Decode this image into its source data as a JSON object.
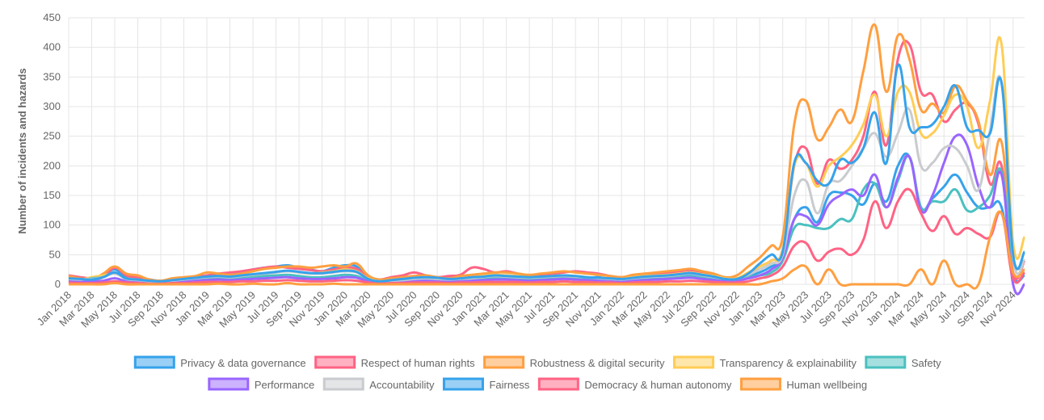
{
  "chart_data": {
    "type": "line",
    "y_label": "Number of incidents and hazards",
    "categories": [
      "Jan 2018",
      null,
      "Mar 2018",
      null,
      "May 2018",
      null,
      "Jul 2018",
      null,
      "Sep 2018",
      null,
      "Nov 2018",
      null,
      "Jan 2019",
      null,
      "Mar 2019",
      null,
      "May 2019",
      null,
      "Jul 2019",
      null,
      "Sep 2019",
      null,
      "Nov 2019",
      null,
      "Jan 2020",
      null,
      "Mar 2020",
      null,
      "May 2020",
      null,
      "Jul 2020",
      null,
      "Sep 2020",
      null,
      "Nov 2020",
      null,
      "Jan 2021",
      null,
      "Mar 2021",
      null,
      "May 2021",
      null,
      "Jul 2021",
      null,
      "Sep 2021",
      null,
      "Nov 2021",
      null,
      "Jan 2022",
      null,
      "Mar 2022",
      null,
      "May 2022",
      null,
      "Jul 2022",
      null,
      "Sep 2022",
      null,
      "Nov 2022",
      null,
      "Jan 2023",
      null,
      "Mar 2023",
      null,
      "May 2023",
      null,
      "Jul 2023",
      null,
      "Sep 2023",
      null,
      "Nov 2023",
      null,
      "Jan 2024",
      null,
      "Mar 2024",
      null,
      "May 2024",
      null,
      "Jul 2024",
      null,
      "Sep 2024",
      null,
      "Nov 2024",
      null
    ],
    "ylim": [
      0,
      450
    ],
    "yticks": [
      0,
      50,
      100,
      150,
      200,
      250,
      300,
      350,
      400,
      450
    ],
    "grid": true,
    "legend": "bottom",
    "series": [
      {
        "name": "Privacy & data governance",
        "color": "#36a2eb",
        "values": [
          12,
          10,
          8,
          15,
          25,
          12,
          10,
          8,
          6,
          8,
          10,
          12,
          15,
          16,
          18,
          20,
          25,
          28,
          30,
          32,
          28,
          25,
          22,
          28,
          32,
          30,
          10,
          5,
          8,
          10,
          12,
          14,
          12,
          10,
          8,
          10,
          12,
          14,
          15,
          12,
          10,
          12,
          14,
          15,
          12,
          10,
          12,
          8,
          10,
          12,
          15,
          18,
          20,
          16,
          14,
          12,
          10,
          8,
          10,
          15,
          20,
          30,
          45,
          110,
          130,
          105,
          150,
          155,
          150,
          135,
          170,
          140,
          200,
          215,
          130,
          145,
          165,
          185,
          155,
          130,
          130,
          130,
          15,
          15
        ]
      },
      {
        "name": "Respect of human rights",
        "color": "#ff6384",
        "values": [
          15,
          12,
          10,
          12,
          28,
          15,
          12,
          8,
          5,
          8,
          10,
          12,
          15,
          18,
          20,
          22,
          25,
          28,
          30,
          28,
          26,
          24,
          22,
          25,
          28,
          26,
          12,
          8,
          12,
          15,
          20,
          15,
          12,
          14,
          16,
          28,
          26,
          20,
          22,
          18,
          15,
          16,
          18,
          20,
          22,
          20,
          18,
          14,
          12,
          14,
          16,
          18,
          20,
          22,
          24,
          20,
          15,
          10,
          10,
          18,
          30,
          40,
          60,
          200,
          230,
          170,
          210,
          195,
          210,
          250,
          325,
          235,
          380,
          405,
          325,
          320,
          275,
          295,
          305,
          270,
          170,
          200,
          20,
          40
        ]
      },
      {
        "name": "Robustness & digital security",
        "color": "#ff9f40",
        "values": [
          14,
          10,
          8,
          18,
          30,
          18,
          15,
          8,
          6,
          10,
          12,
          14,
          20,
          18,
          16,
          18,
          22,
          26,
          28,
          30,
          30,
          28,
          30,
          32,
          30,
          35,
          15,
          8,
          10,
          12,
          14,
          15,
          12,
          10,
          14,
          16,
          18,
          20,
          20,
          18,
          16,
          18,
          20,
          22,
          20,
          18,
          16,
          14,
          12,
          16,
          18,
          20,
          22,
          24,
          26,
          22,
          18,
          12,
          15,
          30,
          45,
          65,
          80,
          270,
          310,
          245,
          265,
          295,
          275,
          360,
          438,
          325,
          420,
          380,
          295,
          305,
          290,
          335,
          310,
          275,
          185,
          240,
          45,
          40
        ]
      },
      {
        "name": "Transparency & explainability",
        "color": "#ffcd56",
        "values": [
          10,
          8,
          12,
          15,
          18,
          10,
          8,
          5,
          4,
          6,
          8,
          10,
          12,
          14,
          12,
          14,
          16,
          18,
          20,
          22,
          20,
          18,
          20,
          22,
          25,
          22,
          10,
          5,
          6,
          8,
          10,
          12,
          10,
          8,
          10,
          12,
          14,
          16,
          15,
          14,
          12,
          13,
          14,
          15,
          14,
          12,
          10,
          10,
          9,
          12,
          14,
          15,
          16,
          18,
          20,
          17,
          14,
          10,
          10,
          20,
          30,
          40,
          60,
          200,
          205,
          165,
          200,
          215,
          235,
          270,
          320,
          250,
          325,
          325,
          255,
          255,
          285,
          320,
          300,
          230,
          310,
          405,
          70,
          80
        ]
      },
      {
        "name": "Safety",
        "color": "#4bc0c0",
        "values": [
          8,
          6,
          10,
          12,
          20,
          8,
          6,
          4,
          3,
          5,
          6,
          8,
          10,
          10,
          9,
          10,
          12,
          14,
          15,
          16,
          14,
          12,
          12,
          14,
          16,
          14,
          6,
          3,
          4,
          5,
          6,
          8,
          7,
          6,
          7,
          8,
          9,
          10,
          10,
          9,
          8,
          9,
          10,
          11,
          10,
          9,
          8,
          7,
          6,
          8,
          9,
          10,
          11,
          12,
          13,
          11,
          9,
          7,
          8,
          12,
          15,
          20,
          40,
          95,
          100,
          95,
          95,
          110,
          110,
          160,
          170,
          130,
          175,
          215,
          130,
          140,
          140,
          160,
          125,
          130,
          150,
          190,
          40,
          40
        ]
      },
      {
        "name": "Performance",
        "color": "#9966ff",
        "values": [
          5,
          4,
          5,
          6,
          10,
          5,
          4,
          3,
          2,
          4,
          5,
          6,
          7,
          8,
          7,
          8,
          9,
          10,
          11,
          12,
          10,
          9,
          9,
          10,
          12,
          11,
          5,
          2,
          3,
          4,
          5,
          6,
          5,
          4,
          5,
          6,
          7,
          8,
          8,
          7,
          6,
          7,
          8,
          9,
          8,
          7,
          6,
          5,
          4,
          6,
          7,
          8,
          9,
          10,
          11,
          9,
          7,
          5,
          6,
          10,
          15,
          25,
          45,
          110,
          115,
          100,
          135,
          150,
          160,
          150,
          185,
          130,
          180,
          215,
          125,
          150,
          205,
          250,
          235,
          165,
          130,
          185,
          0,
          0
        ]
      },
      {
        "name": "Accountability",
        "color": "#c9cbcf",
        "values": [
          9,
          8,
          9,
          12,
          18,
          9,
          7,
          5,
          4,
          6,
          8,
          10,
          12,
          13,
          12,
          14,
          16,
          18,
          20,
          22,
          20,
          18,
          18,
          20,
          22,
          20,
          9,
          5,
          6,
          7,
          9,
          10,
          9,
          8,
          9,
          10,
          12,
          14,
          13,
          12,
          11,
          12,
          13,
          14,
          13,
          12,
          10,
          9,
          8,
          10,
          12,
          13,
          14,
          16,
          18,
          15,
          12,
          9,
          9,
          16,
          25,
          35,
          50,
          150,
          175,
          120,
          170,
          175,
          200,
          230,
          255,
          215,
          255,
          295,
          200,
          205,
          230,
          230,
          200,
          160,
          260,
          340,
          45,
          40
        ]
      },
      {
        "name": "Fairness",
        "color": "#36a2eb",
        "values": [
          10,
          9,
          8,
          12,
          20,
          10,
          8,
          6,
          5,
          7,
          9,
          11,
          13,
          14,
          13,
          15,
          17,
          19,
          21,
          23,
          21,
          19,
          19,
          21,
          23,
          21,
          9,
          5,
          7,
          9,
          11,
          12,
          11,
          9,
          10,
          12,
          13,
          15,
          14,
          13,
          12,
          13,
          14,
          15,
          14,
          12,
          11,
          10,
          9,
          11,
          13,
          14,
          15,
          17,
          19,
          16,
          13,
          9,
          9,
          18,
          35,
          50,
          55,
          205,
          205,
          175,
          170,
          210,
          205,
          230,
          290,
          205,
          370,
          265,
          265,
          270,
          300,
          335,
          265,
          260,
          255,
          340,
          50,
          55
        ]
      },
      {
        "name": "Democracy & human autonomy",
        "color": "#ff6384",
        "values": [
          3,
          2,
          2,
          3,
          5,
          3,
          2,
          1,
          1,
          2,
          2,
          3,
          4,
          4,
          4,
          5,
          5,
          6,
          6,
          7,
          6,
          5,
          5,
          6,
          7,
          6,
          3,
          1,
          2,
          2,
          3,
          3,
          3,
          2,
          3,
          3,
          4,
          4,
          4,
          4,
          3,
          4,
          4,
          5,
          4,
          4,
          3,
          3,
          2,
          3,
          4,
          4,
          5,
          5,
          6,
          5,
          4,
          3,
          3,
          5,
          10,
          15,
          30,
          65,
          70,
          40,
          55,
          60,
          50,
          75,
          140,
          95,
          140,
          160,
          120,
          90,
          115,
          85,
          95,
          85,
          80,
          120,
          10,
          20
        ]
      },
      {
        "name": "Human wellbeing",
        "color": "#ff9f40",
        "values": [
          0,
          0,
          0,
          0,
          2,
          0,
          0,
          0,
          0,
          0,
          0,
          0,
          0,
          1,
          0,
          0,
          1,
          0,
          0,
          2,
          0,
          0,
          0,
          1,
          0,
          0,
          0,
          0,
          0,
          0,
          0,
          0,
          0,
          0,
          0,
          0,
          0,
          0,
          0,
          0,
          0,
          0,
          0,
          0,
          0,
          0,
          0,
          0,
          0,
          0,
          0,
          0,
          0,
          0,
          0,
          0,
          0,
          0,
          0,
          0,
          0,
          5,
          10,
          25,
          30,
          0,
          25,
          0,
          0,
          0,
          0,
          0,
          0,
          0,
          25,
          0,
          40,
          0,
          0,
          0,
          80,
          120,
          20,
          25
        ]
      }
    ]
  }
}
